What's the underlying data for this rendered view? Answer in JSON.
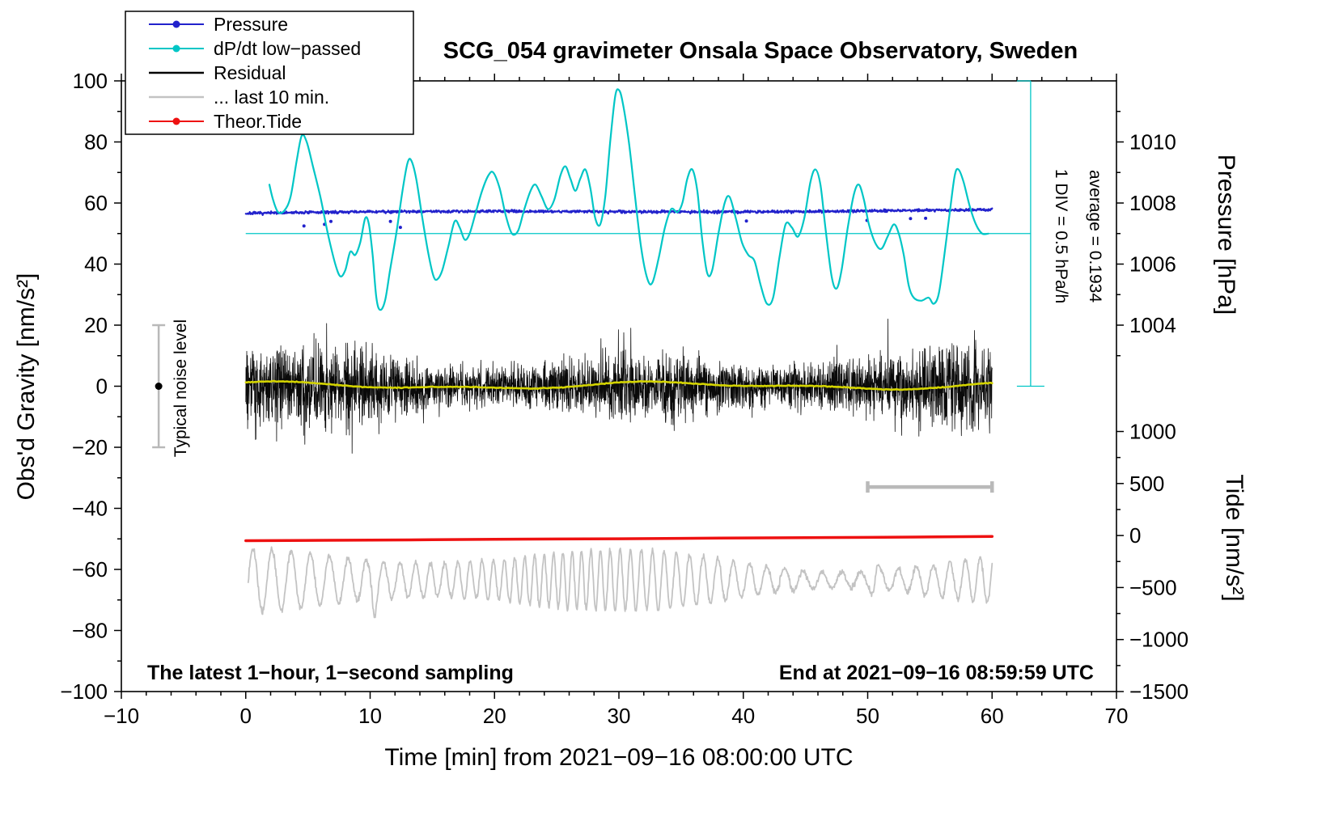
{
  "title": "SCG_054 gravimeter Onsala Space Observatory, Sweden",
  "axes": {
    "x": {
      "label": "Time [min] from 2021−09−16 08:00:00 UTC",
      "range": [
        -10,
        70
      ],
      "major_ticks": [
        -10,
        0,
        10,
        20,
        30,
        40,
        50,
        60,
        70
      ],
      "minor_step": 2
    },
    "left": {
      "label": "Obs'd Gravity [nm/s²]",
      "range": [
        -100,
        100
      ],
      "major_ticks": [
        -100,
        -80,
        -60,
        -40,
        -20,
        0,
        20,
        40,
        60,
        80,
        100
      ],
      "minor_step": 10
    },
    "pressure": {
      "label": "Pressure [hPa]",
      "major_ticks": [
        1004,
        1006,
        1008,
        1010
      ],
      "minor_step": 1,
      "minor_range": [
        1003,
        1011
      ],
      "map": {
        "p_ref": 1004,
        "g_ref": 20,
        "g_per_hpa": 10
      }
    },
    "tide": {
      "label": "Tide [nm/s²]",
      "major_ticks": [
        1000,
        500,
        0,
        -500,
        -1000,
        -1500
      ],
      "minor_step": 250,
      "minor_range": [
        -1500,
        1000
      ],
      "map": {
        "t_ref": 0,
        "g_ref": -48.9,
        "g_per_unit": 0.034067
      }
    }
  },
  "legend": {
    "items": [
      {
        "label": "Pressure",
        "color": "#2222cc",
        "marker": "dot"
      },
      {
        "label": "dP/dt low−passed",
        "color": "#00c6c6",
        "marker": "dot"
      },
      {
        "label": "Residual",
        "color": "#000000",
        "marker": "line"
      },
      {
        "label": "... last 10 min.",
        "color": "#c3c3c3",
        "marker": "line"
      },
      {
        "label": "Theor.Tide",
        "color": "#ee1111",
        "marker": "dot"
      }
    ]
  },
  "annotations": {
    "noise_label": "Typical noise level",
    "div_label": "1 DIV = 0.5 hPa/h",
    "average_label": "average = 0.1934",
    "sampling_note": "The latest 1−hour, 1−second sampling",
    "end_note": "End at 2021−09−16 08:59:59 UTC"
  },
  "chart_data": {
    "type": "line",
    "title": "SCG_054 gravimeter Onsala Space Observatory, Sweden",
    "xlabel": "Time [min] from 2021−09−16 08:00:00 UTC",
    "x_range": [
      -10,
      70
    ],
    "left_axis_range": [
      -100,
      100
    ],
    "pressure_trace_mean_hPa": 1007.7,
    "dp_dt_average_hPa_per_h": 0.1934,
    "series": [
      {
        "name": "Pressure",
        "kind": "pressure",
        "axis": "pressure",
        "color": "#2222cc",
        "width": 2.2,
        "gen": {
          "seed": 7,
          "n": 1500,
          "t0": 0,
          "t1": 60,
          "base_g": 56.3,
          "slope_g": 1.5,
          "wobble": [
            {
              "p": 9,
              "a": 0.3,
              "ph": 0.2
            },
            {
              "p": 23,
              "a": 0.25,
              "ph": 1.0
            }
          ],
          "noise": 0.38,
          "outliers": 9
        }
      },
      {
        "name": "dP/dt low−passed",
        "kind": "smooth_points",
        "axis": "left-arbitrary",
        "color": "#00c6c6",
        "width": 2.2,
        "scale_note": "1 DIV = 0.5 hPa/h",
        "average": 0.1934,
        "points": [
          [
            1.9,
            66
          ],
          [
            2.2,
            61
          ],
          [
            2.6,
            57
          ],
          [
            3.1,
            57.5
          ],
          [
            3.6,
            62
          ],
          [
            4.1,
            74
          ],
          [
            4.5,
            82
          ],
          [
            4.9,
            80
          ],
          [
            5.4,
            72
          ],
          [
            6.0,
            62
          ],
          [
            6.6,
            50
          ],
          [
            7.2,
            40
          ],
          [
            7.6,
            36
          ],
          [
            8.0,
            38
          ],
          [
            8.4,
            44
          ],
          [
            8.8,
            43
          ],
          [
            9.2,
            47
          ],
          [
            9.6,
            55
          ],
          [
            9.9,
            53
          ],
          [
            10.2,
            43
          ],
          [
            10.5,
            29
          ],
          [
            10.8,
            25
          ],
          [
            11.2,
            28
          ],
          [
            11.6,
            38
          ],
          [
            12.1,
            50
          ],
          [
            12.6,
            64
          ],
          [
            13.0,
            73
          ],
          [
            13.3,
            74
          ],
          [
            13.7,
            68
          ],
          [
            14.2,
            55
          ],
          [
            14.7,
            43
          ],
          [
            15.1,
            36
          ],
          [
            15.4,
            35
          ],
          [
            15.8,
            38
          ],
          [
            16.3,
            46
          ],
          [
            16.8,
            54
          ],
          [
            17.2,
            52
          ],
          [
            17.6,
            48
          ],
          [
            18.0,
            50
          ],
          [
            18.5,
            57
          ],
          [
            19.0,
            64
          ],
          [
            19.5,
            69
          ],
          [
            19.9,
            70
          ],
          [
            20.4,
            65
          ],
          [
            20.9,
            56
          ],
          [
            21.4,
            50
          ],
          [
            21.9,
            51
          ],
          [
            22.4,
            58
          ],
          [
            22.9,
            64
          ],
          [
            23.3,
            66
          ],
          [
            23.8,
            62
          ],
          [
            24.3,
            58
          ],
          [
            24.8,
            61
          ],
          [
            25.3,
            69
          ],
          [
            25.7,
            72
          ],
          [
            26.1,
            68
          ],
          [
            26.5,
            64
          ],
          [
            26.9,
            68
          ],
          [
            27.3,
            71
          ],
          [
            27.7,
            65
          ],
          [
            28.1,
            55
          ],
          [
            28.5,
            53
          ],
          [
            28.9,
            62
          ],
          [
            29.3,
            80
          ],
          [
            29.7,
            95
          ],
          [
            30.0,
            97
          ],
          [
            30.3,
            93
          ],
          [
            30.8,
            80
          ],
          [
            31.3,
            62
          ],
          [
            31.8,
            45
          ],
          [
            32.3,
            35
          ],
          [
            32.7,
            34
          ],
          [
            33.2,
            42
          ],
          [
            33.7,
            52
          ],
          [
            34.2,
            58
          ],
          [
            34.7,
            57
          ],
          [
            35.1,
            60
          ],
          [
            35.5,
            68
          ],
          [
            35.9,
            71
          ],
          [
            36.3,
            64
          ],
          [
            36.7,
            48
          ],
          [
            37.1,
            37
          ],
          [
            37.5,
            38
          ],
          [
            38.0,
            50
          ],
          [
            38.5,
            60
          ],
          [
            38.9,
            62
          ],
          [
            39.4,
            55
          ],
          [
            39.9,
            47
          ],
          [
            40.4,
            43
          ],
          [
            40.9,
            41
          ],
          [
            41.4,
            33
          ],
          [
            41.9,
            27
          ],
          [
            42.4,
            29
          ],
          [
            42.9,
            42
          ],
          [
            43.4,
            53
          ],
          [
            43.9,
            52
          ],
          [
            44.4,
            49
          ],
          [
            44.9,
            55
          ],
          [
            45.4,
            67
          ],
          [
            45.8,
            71
          ],
          [
            46.2,
            66
          ],
          [
            46.6,
            52
          ],
          [
            47.1,
            36
          ],
          [
            47.5,
            32
          ],
          [
            47.9,
            38
          ],
          [
            48.4,
            52
          ],
          [
            48.9,
            63
          ],
          [
            49.3,
            66
          ],
          [
            49.7,
            61
          ],
          [
            50.1,
            53
          ],
          [
            50.6,
            47
          ],
          [
            51.1,
            45
          ],
          [
            51.6,
            49
          ],
          [
            52.1,
            53
          ],
          [
            52.5,
            50
          ],
          [
            52.9,
            43
          ],
          [
            53.3,
            33
          ],
          [
            53.7,
            29
          ],
          [
            54.3,
            28
          ],
          [
            54.9,
            29
          ],
          [
            55.3,
            27
          ],
          [
            55.7,
            30
          ],
          [
            56.1,
            41
          ],
          [
            56.6,
            57
          ],
          [
            57.0,
            69
          ],
          [
            57.3,
            71
          ],
          [
            57.7,
            67
          ],
          [
            58.2,
            59
          ],
          [
            58.7,
            53
          ],
          [
            59.2,
            50
          ],
          [
            59.7,
            50
          ]
        ]
      },
      {
        "name": "Residual",
        "kind": "residual",
        "axis": "left",
        "color": "#0a0a0a",
        "width": 0.8,
        "gen": {
          "seed": 21,
          "n": 3600,
          "t0": 0,
          "t1": 60,
          "center": 0,
          "amp": 8.5,
          "amp_mod": [
            {
              "p": 4.3,
              "a": 2.2,
              "ph": 0.5
            },
            {
              "p": 11,
              "a": 1.8,
              "ph": 2.0
            }
          ],
          "spike_prob": 0.008,
          "spike_gain": 1.8,
          "clamp": 22
        }
      },
      {
        "name": "Residual running mean",
        "kind": "smoothline",
        "axis": "left",
        "color": "#d4d400",
        "width": 2.6,
        "gen": {
          "seed": 5,
          "n": 500,
          "t0": 0,
          "t1": 60,
          "center": 0.2,
          "waves": [
            {
              "p": 5.1,
              "a": 0.9,
              "ph": 1.2
            },
            {
              "p": 2.3,
              "a": 0.5,
              "ph": 0.4
            }
          ],
          "noise": 0.12
        }
      },
      {
        "name": "... last 10 min.",
        "kind": "last10",
        "axis": "left",
        "color": "#c3c3c3",
        "width": 1.8,
        "gen": {
          "seed": 13,
          "n": 1600,
          "t0": 0.2,
          "t1": 60,
          "center": -63.5,
          "carrier_p": 1.15,
          "carrier_mod": 0.35,
          "amp": 7,
          "amp_mod": 3,
          "spikes": [
            {
              "t": 10.3,
              "a": 6
            },
            {
              "t": 50.6,
              "a": 6
            }
          ],
          "noise": 0.8
        }
      },
      {
        "name": "Theor.Tide",
        "kind": "polyline_points",
        "axis": "tide",
        "color": "#ee1111",
        "width": 3.5,
        "tide_value_note": "rises from ≈ −50 to ≈ +10 nm/s² over the hour (plotted near g = −50)",
        "points": [
          [
            0,
            -50.6
          ],
          [
            10,
            -50.4
          ],
          [
            20,
            -50.15
          ],
          [
            30,
            -49.95
          ],
          [
            40,
            -49.7
          ],
          [
            50,
            -49.5
          ],
          [
            60,
            -49.2
          ]
        ]
      }
    ],
    "average_line": {
      "g": 50,
      "x": [
        0,
        63.1
      ],
      "color": "#00c6c6"
    },
    "div_indicator": {
      "x": 63.1,
      "g": [
        0,
        100
      ],
      "color": "#00c6c6"
    },
    "scale_bar_10min": {
      "g": -33,
      "x": [
        50,
        60
      ],
      "color": "#b9b9b9"
    },
    "noise_bar": {
      "x": -7,
      "g": [
        -20,
        20
      ],
      "dot_g": 0,
      "bar_color": "#b9b9b9",
      "dot_color": "#000000"
    }
  }
}
